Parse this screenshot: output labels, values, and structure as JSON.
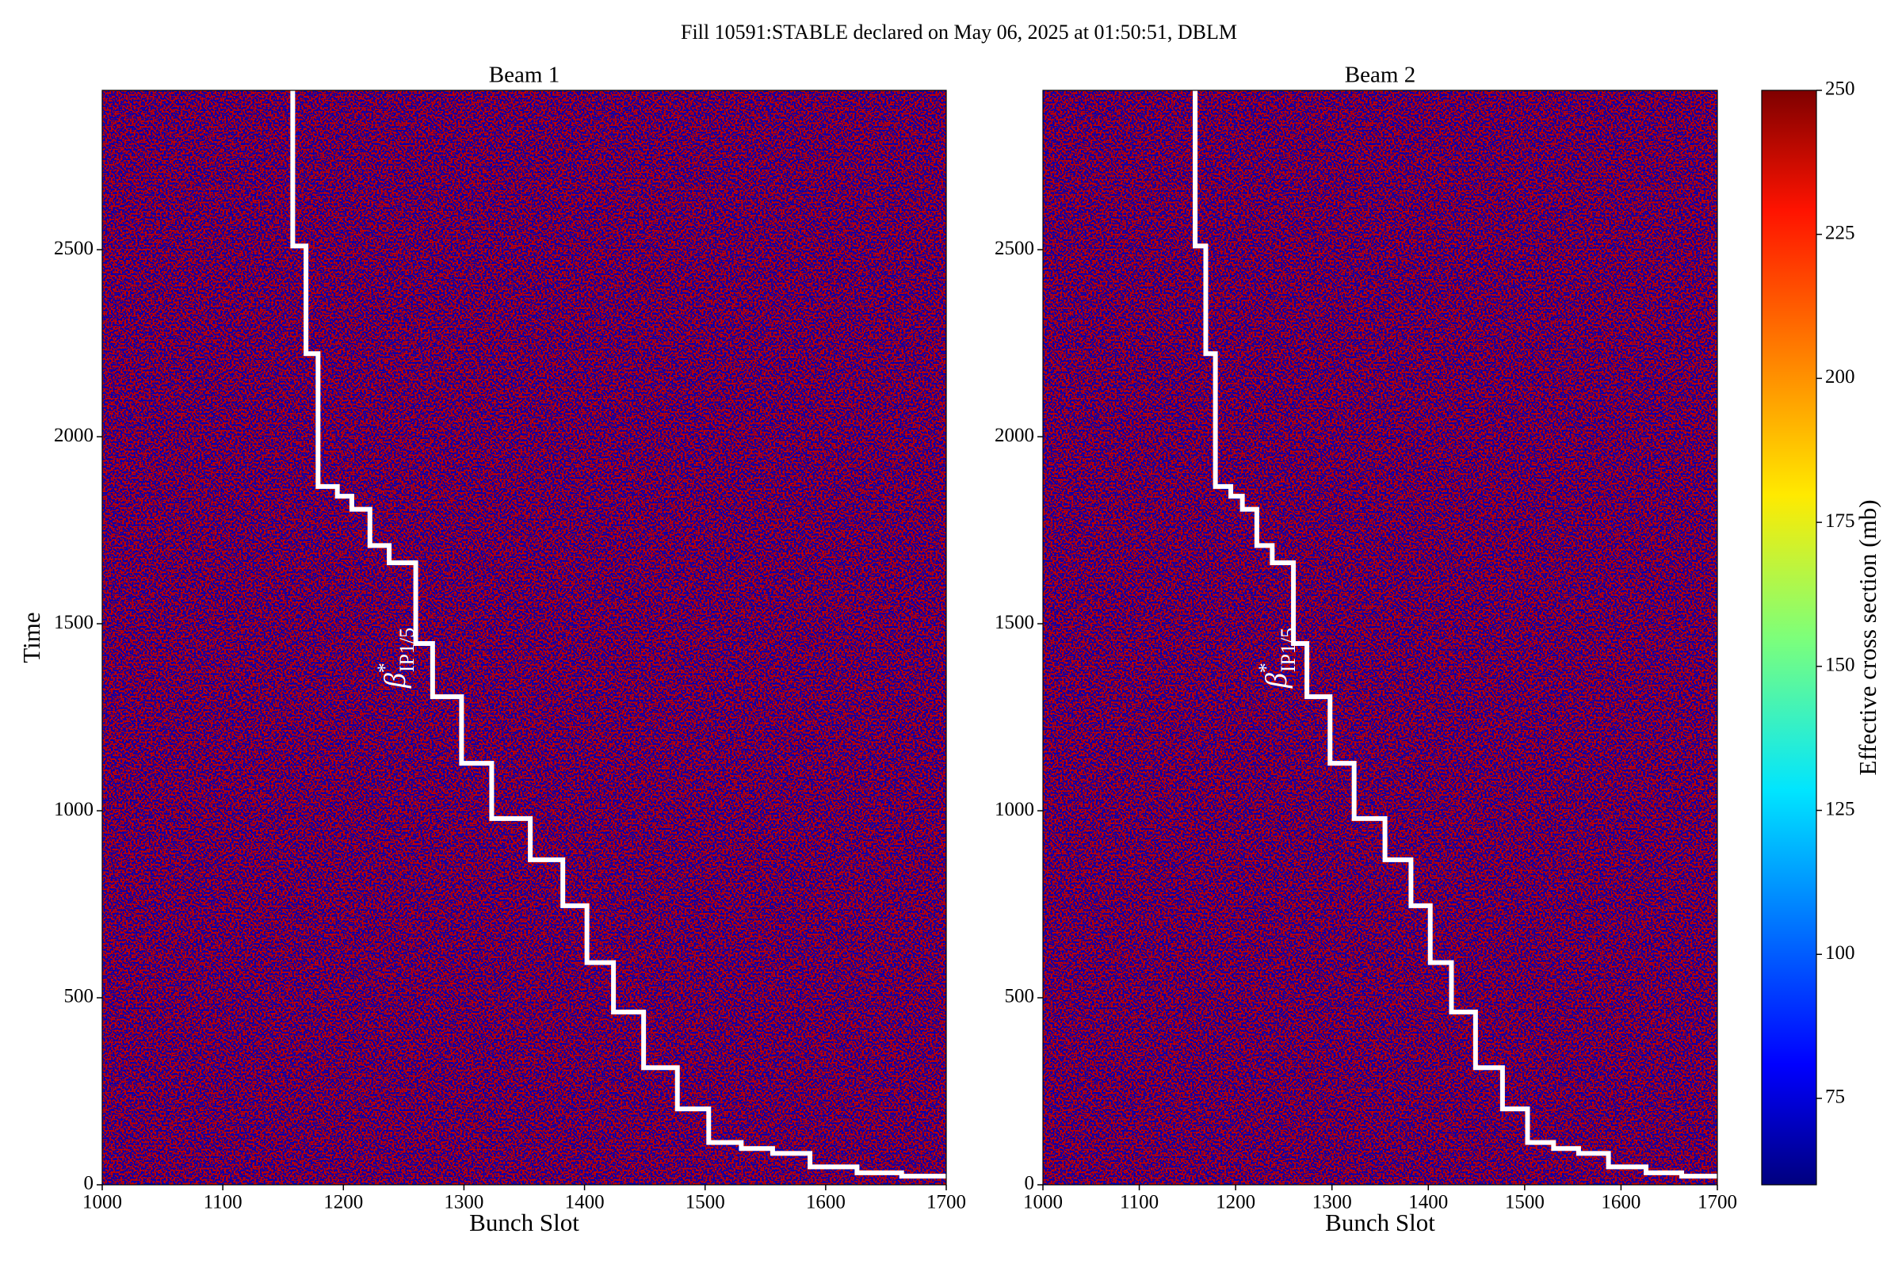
{
  "chart_data": {
    "type": "heatmap",
    "title": "Fill 10591:STABLE declared on May 06, 2025 at 01:50:51, DBLM",
    "panels": [
      {
        "title": "Beam 1",
        "xlabel": "Bunch Slot",
        "ylabel": "Time",
        "xlim": [
          1000,
          1700
        ],
        "xticks": [
          1000,
          1100,
          1200,
          1300,
          1400,
          1500,
          1600,
          1700
        ],
        "ylim": [
          0,
          2926
        ],
        "yticks": [
          0,
          500,
          1000,
          1500,
          2000,
          2500
        ],
        "annotation": {
          "symbol": "β",
          "sup": "*",
          "sub": "IP1/5"
        },
        "series": [
          {
            "color": "#ffffff",
            "x": [
              1158,
              1169,
              1179,
              1195,
              1207,
              1222,
              1238,
              1260,
              1274,
              1298,
              1323,
              1355,
              1382,
              1402,
              1424,
              1449,
              1477,
              1503,
              1530,
              1556,
              1587,
              1626,
              1663
            ],
            "values": [
              2510,
              2222,
              1867,
              1841,
              1806,
              1709,
              1663,
              1447,
              1305,
              1127,
              979,
              869,
              746,
              594,
              462,
              313,
              203,
              113,
              97,
              84,
              48,
              32,
              23
            ]
          }
        ]
      },
      {
        "title": "Beam 2",
        "xlabel": "Bunch Slot",
        "xlim": [
          1000,
          1700
        ],
        "xticks": [
          1000,
          1100,
          1200,
          1300,
          1400,
          1500,
          1600,
          1700
        ],
        "ylim": [
          0,
          2926
        ],
        "yticks": [
          0,
          500,
          1000,
          1500,
          2000,
          2500
        ],
        "annotation": {
          "symbol": "β",
          "sup": "*",
          "sub": "IP1/5"
        },
        "series": [
          {
            "color": "#ffffff",
            "x": [
              1158,
              1169,
              1179,
              1195,
              1207,
              1222,
              1238,
              1260,
              1274,
              1298,
              1323,
              1355,
              1382,
              1402,
              1424,
              1449,
              1477,
              1503,
              1530,
              1556,
              1587,
              1626,
              1663
            ],
            "values": [
              2510,
              2222,
              1867,
              1841,
              1806,
              1709,
              1663,
              1447,
              1305,
              1127,
              979,
              869,
              746,
              594,
              462,
              313,
              203,
              113,
              97,
              84,
              48,
              32,
              23
            ]
          }
        ]
      }
    ],
    "colorbar": {
      "label": "Effective cross section (mb)",
      "clim": [
        60,
        250
      ],
      "ticks": [
        75,
        100,
        125,
        150,
        175,
        200,
        225,
        250
      ]
    }
  }
}
